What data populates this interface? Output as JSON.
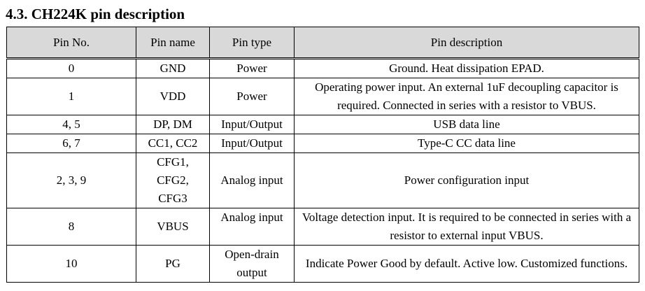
{
  "section_title": "4.3. CH224K pin description",
  "table": {
    "headers": [
      "Pin No.",
      "Pin name",
      "Pin type",
      "Pin description"
    ],
    "rows": [
      {
        "pin_no": "0",
        "pin_name": "GND",
        "pin_type": "Power",
        "description": "Ground. Heat dissipation EPAD."
      },
      {
        "pin_no": "1",
        "pin_name": "VDD",
        "pin_type": "Power",
        "description": "Operating power input. An external 1uF decoupling capacitor is required. Connected in series with a resistor to VBUS."
      },
      {
        "pin_no": "4, 5",
        "pin_name": "DP, DM",
        "pin_type": "Input/Output",
        "description": "USB data line"
      },
      {
        "pin_no": "6, 7",
        "pin_name": "CC1, CC2",
        "pin_type": "Input/Output",
        "description": "Type-C CC data line"
      },
      {
        "pin_no": "2, 3, 9",
        "pin_name_lines": [
          "CFG1,",
          "CFG2,",
          "CFG3"
        ],
        "pin_type": "Analog input",
        "description": "Power configuration input"
      },
      {
        "pin_no": "8",
        "pin_name": "VBUS",
        "pin_type": "Analog input",
        "description": "Voltage detection input. It is required to be connected in series with a resistor to external input VBUS."
      },
      {
        "pin_no": "10",
        "pin_name": "PG",
        "pin_type": "Open-drain output",
        "description": "Indicate Power Good by default. Active low. Customized functions."
      }
    ]
  }
}
